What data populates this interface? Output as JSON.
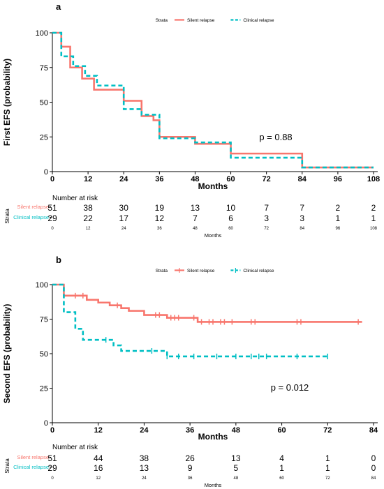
{
  "colors": {
    "silent": "#F8766D",
    "clinical": "#00BFC4",
    "axis": "#000000"
  },
  "chart_data": [
    {
      "panel": "a",
      "type": "line",
      "subtype": "kaplan-meier",
      "xlabel": "Months",
      "ylabel": "First EFS (probability)",
      "xlim": [
        0,
        108
      ],
      "ylim": [
        0,
        100
      ],
      "xticks": [
        "0",
        "12",
        "24",
        "36",
        "48",
        "60",
        "72",
        "84",
        "96",
        "108"
      ],
      "yticks": [
        "0",
        "25",
        "50",
        "75",
        "100"
      ],
      "legend": {
        "title": "Strata",
        "position": "top",
        "items": [
          "Silent relapse",
          "Clinical relapse"
        ]
      },
      "annotation": "p = 0.88",
      "series": [
        {
          "name": "Silent relapse",
          "style": "solid",
          "steps": [
            [
              0,
              100
            ],
            [
              3,
              90
            ],
            [
              6,
              75
            ],
            [
              10,
              67
            ],
            [
              14,
              59
            ],
            [
              24,
              51
            ],
            [
              30,
              40
            ],
            [
              34,
              37
            ],
            [
              36,
              25
            ],
            [
              48,
              20
            ],
            [
              60,
              13
            ],
            [
              84,
              3
            ],
            [
              108,
              3
            ]
          ],
          "censors": []
        },
        {
          "name": "Clinical relapse",
          "style": "dashed",
          "steps": [
            [
              0,
              100
            ],
            [
              3,
              83
            ],
            [
              7,
              76
            ],
            [
              11,
              69
            ],
            [
              15,
              62
            ],
            [
              24,
              45
            ],
            [
              30,
              41
            ],
            [
              36,
              24
            ],
            [
              48,
              21
            ],
            [
              60,
              10
            ],
            [
              84,
              3
            ],
            [
              108,
              3
            ]
          ],
          "censors": []
        }
      ],
      "risk_table": {
        "title": "Number at risk",
        "strata_label": "Strata",
        "xlabel": "Months",
        "ticks": [
          "0",
          "12",
          "24",
          "36",
          "48",
          "60",
          "72",
          "84",
          "96",
          "108"
        ],
        "rows": [
          {
            "name": "Silent relapse",
            "values": [
              51,
              38,
              30,
              19,
              13,
              10,
              7,
              7,
              2,
              2
            ]
          },
          {
            "name": "Clinical relapse",
            "values": [
              29,
              22,
              17,
              12,
              7,
              6,
              3,
              3,
              1,
              1
            ]
          }
        ]
      }
    },
    {
      "panel": "b",
      "type": "line",
      "subtype": "kaplan-meier",
      "xlabel": "Months",
      "ylabel": "Second EFS (probability)",
      "xlim": [
        0,
        84
      ],
      "ylim": [
        0,
        100
      ],
      "xticks": [
        "0",
        "12",
        "24",
        "36",
        "48",
        "60",
        "72",
        "84"
      ],
      "yticks": [
        "0",
        "25",
        "50",
        "75",
        "100"
      ],
      "legend": {
        "title": "Strata",
        "position": "top",
        "items": [
          "Silent relapse",
          "Clinical relapse"
        ]
      },
      "annotation": "p = 0.012",
      "series": [
        {
          "name": "Silent relapse",
          "style": "solid",
          "steps": [
            [
              0,
              100
            ],
            [
              3,
              92
            ],
            [
              9,
              89
            ],
            [
              12,
              87
            ],
            [
              15,
              85
            ],
            [
              18,
              83
            ],
            [
              20,
              81
            ],
            [
              24,
              78
            ],
            [
              30,
              76
            ],
            [
              38,
              73
            ],
            [
              81,
              73
            ]
          ],
          "censors": [
            6,
            8,
            17,
            27,
            28,
            31,
            32,
            33,
            37,
            39,
            41,
            42,
            44,
            45,
            47,
            52,
            53,
            64,
            65,
            80
          ]
        },
        {
          "name": "Clinical relapse",
          "style": "dashed",
          "steps": [
            [
              0,
              100
            ],
            [
              3,
              80
            ],
            [
              6,
              68
            ],
            [
              8,
              60
            ],
            [
              16,
              56
            ],
            [
              18,
              52
            ],
            [
              30,
              48
            ],
            [
              72,
              48
            ]
          ],
          "censors": [
            14,
            26,
            30,
            33,
            37,
            43,
            48,
            52,
            54,
            56,
            64,
            72
          ]
        }
      ],
      "risk_table": {
        "title": "Number at risk",
        "strata_label": "Strata",
        "xlabel": "Months",
        "ticks": [
          "0",
          "12",
          "24",
          "36",
          "48",
          "60",
          "72",
          "84"
        ],
        "rows": [
          {
            "name": "Silent relapse",
            "values": [
              51,
              44,
              38,
              26,
              13,
              4,
              1,
              0
            ]
          },
          {
            "name": "Clinical relapse",
            "values": [
              29,
              16,
              13,
              9,
              5,
              1,
              1,
              0
            ]
          }
        ]
      }
    }
  ]
}
